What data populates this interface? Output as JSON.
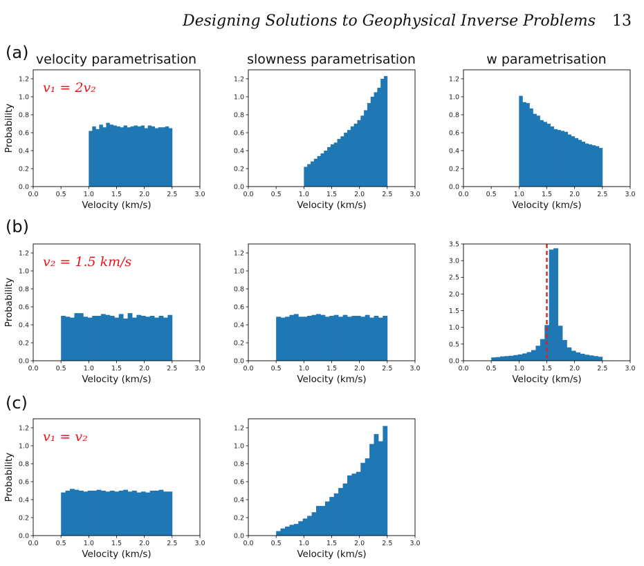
{
  "header": {
    "title": "Designing Solutions to Geophysical Inverse Problems",
    "page_number": "13"
  },
  "row_labels": [
    "(a)",
    "(b)",
    "(c)"
  ],
  "column_titles": [
    "velocity parametrisation",
    "slowness parametrisation",
    "w parametrisation"
  ],
  "colors": {
    "bar": "#1f77b4",
    "annotation": "#e8161c",
    "ref_line": "#d62728"
  },
  "chart_data": [
    {
      "id": "a1",
      "row": 0,
      "col": 0,
      "type": "bar",
      "xlabel": "Velocity (km/s)",
      "ylabel": "Probability",
      "xlim": [
        0,
        3
      ],
      "ylim": [
        0,
        1.3
      ],
      "xticks": [
        "0.0",
        "0.5",
        "1.0",
        "1.5",
        "2.0",
        "2.5",
        "3.0"
      ],
      "yticks": [
        "0.0",
        "0.2",
        "0.4",
        "0.6",
        "0.8",
        "1.0",
        "1.2"
      ],
      "annotation": "v₁ = 2v₂",
      "bin_range": [
        1.0,
        2.5
      ],
      "values": [
        0.62,
        0.67,
        0.64,
        0.69,
        0.66,
        0.71,
        0.69,
        0.68,
        0.67,
        0.66,
        0.68,
        0.66,
        0.67,
        0.68,
        0.67,
        0.68,
        0.65,
        0.68,
        0.67,
        0.65,
        0.66,
        0.66,
        0.67,
        0.65
      ]
    },
    {
      "id": "a2",
      "row": 0,
      "col": 1,
      "type": "bar",
      "xlabel": "Velocity (km/s)",
      "ylabel": "",
      "xlim": [
        0,
        3
      ],
      "ylim": [
        0,
        1.3
      ],
      "xticks": [
        "0.0",
        "0.5",
        "1.0",
        "1.5",
        "2.0",
        "2.5",
        "3.0"
      ],
      "yticks": [
        "0.0",
        "0.2",
        "0.4",
        "0.6",
        "0.8",
        "1.0",
        "1.2"
      ],
      "bin_range": [
        1.0,
        2.5
      ],
      "values": [
        0.22,
        0.25,
        0.28,
        0.31,
        0.34,
        0.37,
        0.4,
        0.44,
        0.47,
        0.49,
        0.53,
        0.56,
        0.6,
        0.63,
        0.67,
        0.7,
        0.74,
        0.79,
        0.85,
        0.93,
        1.0,
        1.05,
        1.1,
        1.2,
        1.23
      ]
    },
    {
      "id": "a3",
      "row": 0,
      "col": 2,
      "type": "bar",
      "xlabel": "Velocity (km/s)",
      "ylabel": "",
      "xlim": [
        0,
        3
      ],
      "ylim": [
        0,
        1.3
      ],
      "xticks": [
        "0.0",
        "0.5",
        "1.0",
        "1.5",
        "2.0",
        "2.5",
        "3.0"
      ],
      "yticks": [
        "0.0",
        "0.2",
        "0.4",
        "0.6",
        "0.8",
        "1.0",
        "1.2"
      ],
      "bin_range": [
        1.0,
        2.5
      ],
      "values": [
        1.01,
        0.94,
        0.93,
        0.87,
        0.81,
        0.79,
        0.74,
        0.72,
        0.7,
        0.67,
        0.64,
        0.63,
        0.62,
        0.61,
        0.58,
        0.56,
        0.54,
        0.52,
        0.5,
        0.48,
        0.47,
        0.46,
        0.45,
        0.43
      ]
    },
    {
      "id": "b1",
      "row": 1,
      "col": 0,
      "type": "bar",
      "xlabel": "Velocity (km/s)",
      "ylabel": "Probability",
      "xlim": [
        0,
        3
      ],
      "ylim": [
        0,
        1.3
      ],
      "xticks": [
        "0.0",
        "0.5",
        "1.0",
        "1.5",
        "2.0",
        "2.5",
        "3.0"
      ],
      "yticks": [
        "0.0",
        "0.2",
        "0.4",
        "0.6",
        "0.8",
        "1.0",
        "1.2"
      ],
      "annotation": "v₂ = 1.5 km/s",
      "bin_range": [
        0.5,
        2.5
      ],
      "values": [
        0.5,
        0.49,
        0.48,
        0.53,
        0.53,
        0.49,
        0.48,
        0.5,
        0.5,
        0.52,
        0.51,
        0.5,
        0.48,
        0.52,
        0.47,
        0.53,
        0.48,
        0.51,
        0.5,
        0.49,
        0.5,
        0.48,
        0.5,
        0.48,
        0.51
      ]
    },
    {
      "id": "b2",
      "row": 1,
      "col": 1,
      "type": "bar",
      "xlabel": "Velocity (km/s)",
      "ylabel": "",
      "xlim": [
        0,
        3
      ],
      "ylim": [
        0,
        1.3
      ],
      "xticks": [
        "0.0",
        "0.5",
        "1.0",
        "1.5",
        "2.0",
        "2.5",
        "3.0"
      ],
      "yticks": [
        "0.0",
        "0.2",
        "0.4",
        "0.6",
        "0.8",
        "1.0",
        "1.2"
      ],
      "bin_range": [
        0.5,
        2.5
      ],
      "values": [
        0.49,
        0.48,
        0.49,
        0.51,
        0.52,
        0.49,
        0.49,
        0.5,
        0.51,
        0.52,
        0.51,
        0.49,
        0.5,
        0.51,
        0.49,
        0.51,
        0.49,
        0.5,
        0.5,
        0.49,
        0.51,
        0.48,
        0.5,
        0.48,
        0.5
      ]
    },
    {
      "id": "b3",
      "row": 1,
      "col": 2,
      "type": "bar",
      "xlabel": "Velocity (km/s)",
      "ylabel": "",
      "xlim": [
        0,
        3
      ],
      "ylim": [
        0,
        3.5
      ],
      "xticks": [
        "0.0",
        "0.5",
        "1.0",
        "1.5",
        "2.0",
        "2.5",
        "3.0"
      ],
      "yticks": [
        "0.0",
        "0.5",
        "1.0",
        "1.5",
        "2.0",
        "2.5",
        "3.0",
        "3.5"
      ],
      "bin_range": [
        0.5,
        2.5
      ],
      "values": [
        0.1,
        0.11,
        0.13,
        0.14,
        0.15,
        0.17,
        0.19,
        0.22,
        0.26,
        0.32,
        0.45,
        0.65,
        1.07,
        3.33,
        3.37,
        1.05,
        0.62,
        0.4,
        0.3,
        0.25,
        0.21,
        0.18,
        0.16,
        0.14,
        0.12
      ],
      "reference_line_x": 1.5
    },
    {
      "id": "c1",
      "row": 2,
      "col": 0,
      "type": "bar",
      "xlabel": "Velocity (km/s)",
      "ylabel": "Probability",
      "xlim": [
        0,
        3
      ],
      "ylim": [
        0,
        1.3
      ],
      "xticks": [
        "0.0",
        "0.5",
        "1.0",
        "1.5",
        "2.0",
        "2.5",
        "3.0"
      ],
      "yticks": [
        "0.0",
        "0.2",
        "0.4",
        "0.6",
        "0.8",
        "1.0",
        "1.2"
      ],
      "annotation": "v₁ = v₂",
      "bin_range": [
        0.5,
        2.5
      ],
      "values": [
        0.48,
        0.5,
        0.52,
        0.51,
        0.5,
        0.49,
        0.5,
        0.5,
        0.51,
        0.5,
        0.49,
        0.5,
        0.49,
        0.5,
        0.51,
        0.49,
        0.5,
        0.48,
        0.49,
        0.48,
        0.5,
        0.5,
        0.51,
        0.49,
        0.49
      ]
    },
    {
      "id": "c2",
      "row": 2,
      "col": 1,
      "type": "bar",
      "xlabel": "Velocity (km/s)",
      "ylabel": "",
      "xlim": [
        0,
        3
      ],
      "ylim": [
        0,
        1.3
      ],
      "xticks": [
        "0.0",
        "0.5",
        "1.0",
        "1.5",
        "2.0",
        "2.5",
        "3.0"
      ],
      "yticks": [
        "0.0",
        "0.2",
        "0.4",
        "0.6",
        "0.8",
        "1.0",
        "1.2"
      ],
      "bin_range": [
        0.5,
        2.5
      ],
      "values": [
        0.05,
        0.08,
        0.1,
        0.12,
        0.13,
        0.16,
        0.19,
        0.22,
        0.26,
        0.33,
        0.33,
        0.38,
        0.43,
        0.47,
        0.53,
        0.58,
        0.67,
        0.69,
        0.71,
        0.81,
        0.86,
        1.02,
        1.13,
        1.05,
        1.22
      ]
    }
  ]
}
